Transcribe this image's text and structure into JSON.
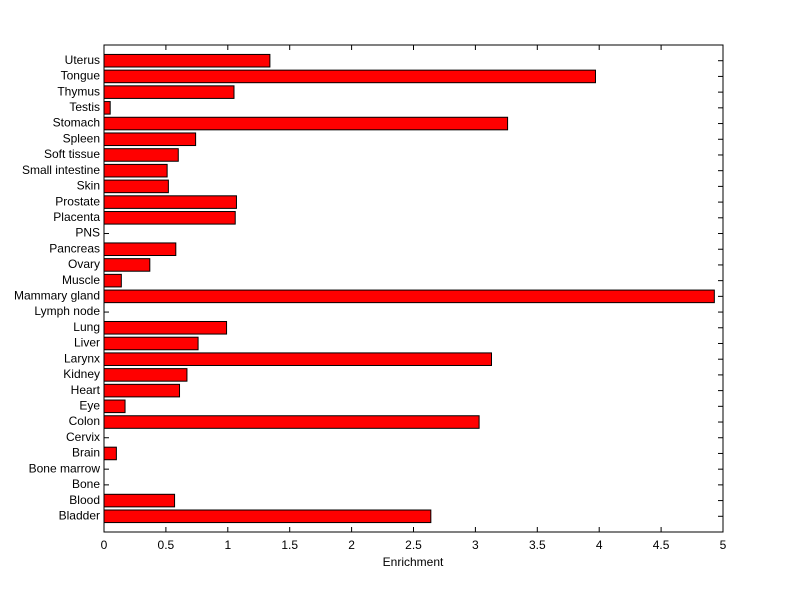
{
  "chart_data": {
    "type": "bar",
    "orientation": "horizontal",
    "color": "#ff0000",
    "xlabel": "Enrichment",
    "categories": [
      "Bladder",
      "Blood",
      "Bone",
      "Bone marrow",
      "Brain",
      "Cervix",
      "Colon",
      "Eye",
      "Heart",
      "Kidney",
      "Larynx",
      "Liver",
      "Lung",
      "Lymph node",
      "Mammary gland",
      "Muscle",
      "Ovary",
      "Pancreas",
      "PNS",
      "Placenta",
      "Prostate",
      "Skin",
      "Small intestine",
      "Soft tissue",
      "Spleen",
      "Stomach",
      "Testis",
      "Thymus",
      "Tongue",
      "Uterus"
    ],
    "values": [
      2.64,
      0.57,
      0,
      0,
      0.1,
      0,
      3.03,
      0.17,
      0.61,
      0.67,
      3.13,
      0.76,
      0.99,
      0,
      4.93,
      0.14,
      0.37,
      0.58,
      0,
      1.06,
      1.07,
      0.52,
      0.51,
      0.6,
      0.74,
      3.26,
      0.05,
      1.05,
      3.97,
      1.34
    ],
    "xlim": [
      0,
      5
    ],
    "xticks": [
      0,
      0.5,
      1,
      1.5,
      2,
      2.5,
      3,
      3.5,
      4,
      4.5,
      5
    ]
  }
}
